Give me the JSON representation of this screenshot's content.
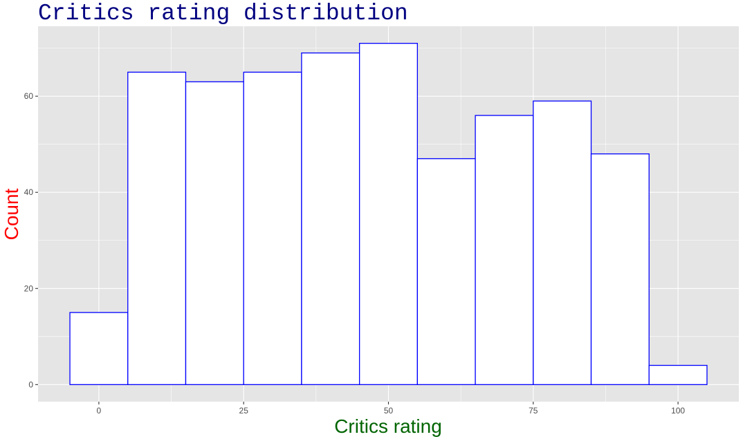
{
  "chart_data": {
    "type": "bar",
    "title": "Critics rating distribution",
    "xlabel": "Critics rating",
    "ylabel": "Count",
    "bins": [
      {
        "x_start": -5,
        "x_end": 5,
        "count": 15
      },
      {
        "x_start": 5,
        "x_end": 15,
        "count": 65
      },
      {
        "x_start": 15,
        "x_end": 25,
        "count": 63
      },
      {
        "x_start": 25,
        "x_end": 35,
        "count": 65
      },
      {
        "x_start": 35,
        "x_end": 45,
        "count": 69
      },
      {
        "x_start": 45,
        "x_end": 55,
        "count": 71
      },
      {
        "x_start": 55,
        "x_end": 65,
        "count": 47
      },
      {
        "x_start": 65,
        "x_end": 75,
        "count": 56
      },
      {
        "x_start": 75,
        "x_end": 85,
        "count": 59
      },
      {
        "x_start": 85,
        "x_end": 95,
        "count": 48
      },
      {
        "x_start": 95,
        "x_end": 105,
        "count": 4
      }
    ],
    "xlim": [
      -10.5,
      110.5
    ],
    "ylim": [
      -3.55,
      74.55
    ],
    "x_ticks": [
      0,
      25,
      50,
      75,
      100
    ],
    "y_ticks": [
      0,
      20,
      40,
      60
    ],
    "grid": true,
    "legend": "none",
    "colors": {
      "panel_background": "#e5e5e5",
      "grid_major": "#ffffff",
      "bar_fill": "#ffffff",
      "bar_outline": "#0000ff",
      "title": "#000080",
      "xlabel": "#006400",
      "ylabel": "#ff0000"
    }
  }
}
